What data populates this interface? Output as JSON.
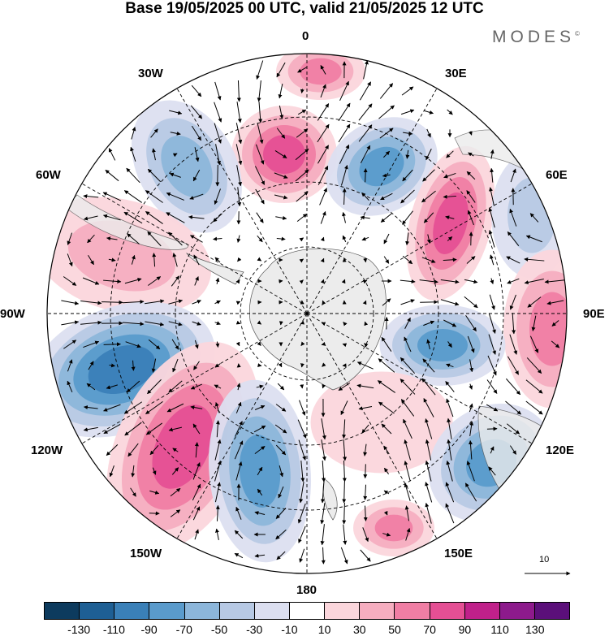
{
  "title": "Base 19/05/2025 00 UTC, valid 21/05/2025 12 UTC",
  "brand": "MODES",
  "brand_mark": "©",
  "longitude_labels": {
    "lon_0": "0",
    "lon_30e": "30E",
    "lon_60e": "60E",
    "lon_90e": "90E",
    "lon_120e": "120E",
    "lon_150e": "150E",
    "lon_180": "180",
    "lon_150w": "150W",
    "lon_120w": "120W",
    "lon_90w": "90W",
    "lon_60w": "60W",
    "lon_30w": "30W"
  },
  "reference_vector": "10",
  "colorbar": {
    "colors": [
      "#0d3b5e",
      "#1e5f94",
      "#3a80b8",
      "#5a9bcc",
      "#8cb6da",
      "#b7c9e4",
      "#dcdff0",
      "#ffffff",
      "#fbd6dc",
      "#f6aec0",
      "#f07ea4",
      "#e54f94",
      "#c0208a",
      "#8d1a8c",
      "#5b0f7a"
    ],
    "labels": [
      "-130",
      "-110",
      "-90",
      "-70",
      "-50",
      "-30",
      "-10",
      "10",
      "30",
      "50",
      "70",
      "90",
      "110",
      "130"
    ]
  },
  "map": {
    "projection": "south polar stereographic",
    "land_color": "#ececec"
  }
}
